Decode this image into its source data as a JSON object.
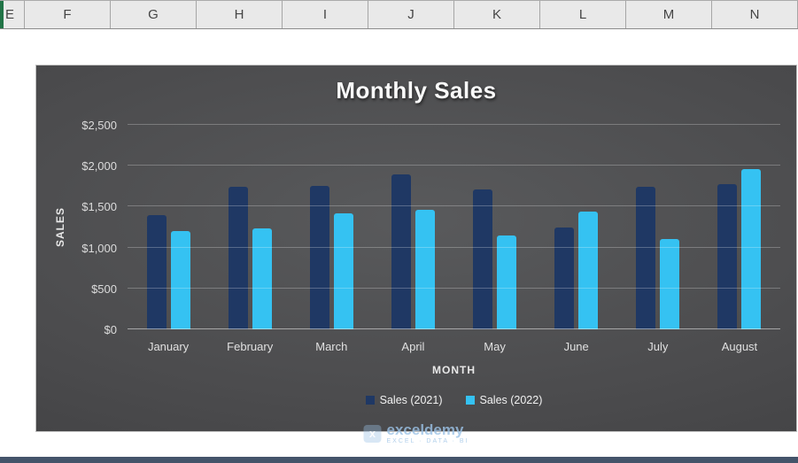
{
  "spreadsheet": {
    "column_headers": [
      "E",
      "F",
      "G",
      "H",
      "I",
      "J",
      "K",
      "L",
      "M",
      "N"
    ]
  },
  "chart_data": {
    "type": "bar",
    "title": "Monthly Sales",
    "xlabel": "MONTH",
    "ylabel": "SALES",
    "categories": [
      "January",
      "February",
      "March",
      "April",
      "May",
      "June",
      "July",
      "August"
    ],
    "series": [
      {
        "name": "Sales (2021)",
        "color": "#1F3864",
        "values": [
          1400,
          1745,
          1755,
          1890,
          1715,
          1250,
          1740,
          1775
        ]
      },
      {
        "name": "Sales (2022)",
        "color": "#35C2F2",
        "values": [
          1200,
          1235,
          1420,
          1460,
          1150,
          1440,
          1105,
          1960
        ]
      }
    ],
    "ylim": [
      0,
      2500
    ],
    "ytick_step": 500,
    "ytick_labels": [
      "$0",
      "$500",
      "$1,000",
      "$1,500",
      "$2,000",
      "$2,500"
    ],
    "legend_position": "bottom",
    "grid": true,
    "background_style": "dark-gradient"
  },
  "watermark": {
    "brand": "exceldemy",
    "tagline": "EXCEL · DATA · BI"
  }
}
